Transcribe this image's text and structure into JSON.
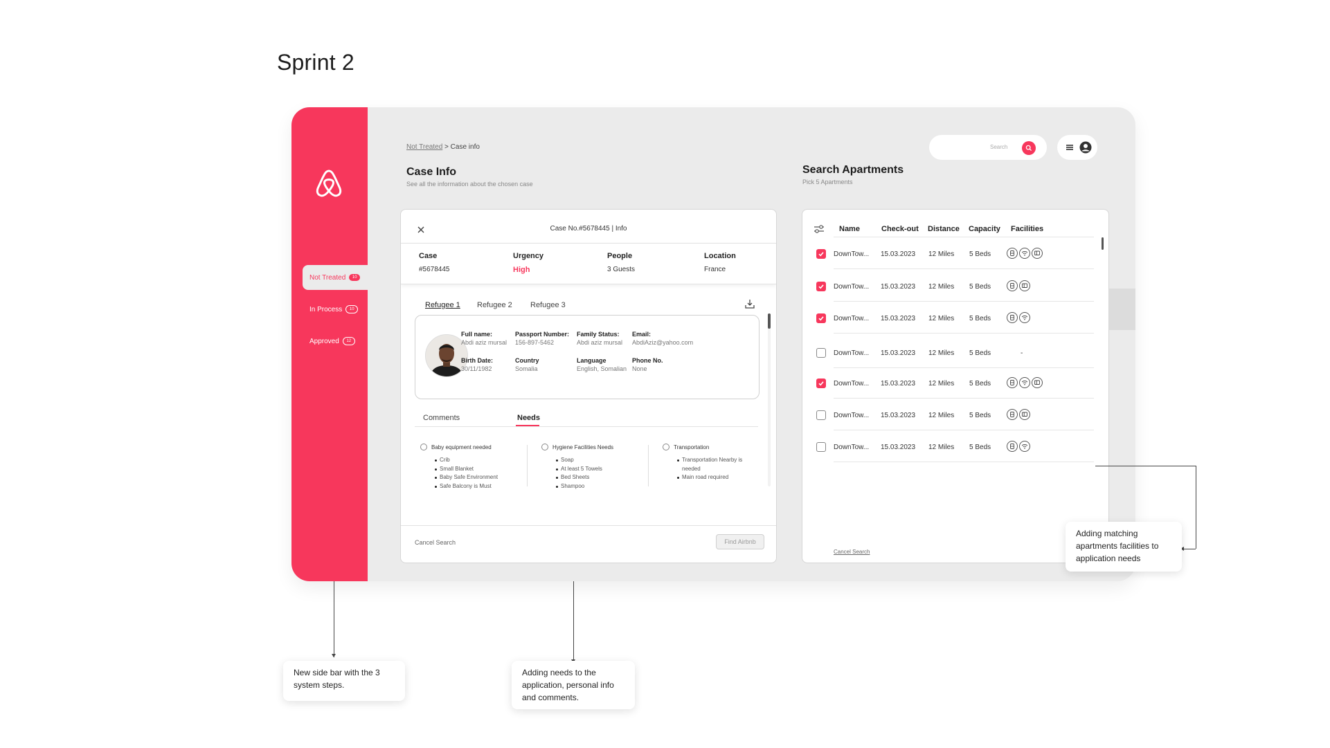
{
  "page_title": "Sprint 2",
  "sidebar": {
    "items": [
      {
        "label": "Not Treated",
        "badge": "10",
        "active": true
      },
      {
        "label": "In Process",
        "badge": "10",
        "active": false
      },
      {
        "label": "Approved",
        "badge": "12",
        "active": false
      }
    ]
  },
  "breadcrumb": {
    "parent": "Not Treated",
    "separator": " > ",
    "current": "Case info"
  },
  "search": {
    "placeholder": "Search"
  },
  "case_info": {
    "title": "Case Info",
    "subtitle": "See all the information about the chosen case",
    "header": "Case No.#5678445 | Info",
    "fields": [
      {
        "label": "Case",
        "value": "#5678445"
      },
      {
        "label": "Urgency",
        "value": "High"
      },
      {
        "label": "People",
        "value": "3 Guests"
      },
      {
        "label": "Location",
        "value": "France"
      }
    ],
    "refugee_tabs": [
      "Refugee 1",
      "Refugee 2",
      "Refugee 3"
    ],
    "person": {
      "full_name": {
        "label": "Full name:",
        "value": "Abdi aziz mursal"
      },
      "passport": {
        "label": "Passport Number:",
        "value": "156-897-5462"
      },
      "family": {
        "label": "Family Status:",
        "value": "Abdi aziz mursal"
      },
      "email": {
        "label": "Email:",
        "value": "AbdiAziz@yahoo.com"
      },
      "birth": {
        "label": "Birth Date:",
        "value": "30/11/1982"
      },
      "country": {
        "label": "Country",
        "value": "Somalia"
      },
      "language": {
        "label": "Language",
        "value": "English, Somalian"
      },
      "phone": {
        "label": "Phone No.",
        "value": "None"
      }
    },
    "sub_tabs": [
      "Comments",
      "Needs"
    ],
    "needs": [
      {
        "title": "Baby equipment needed",
        "items": [
          "Crib",
          "Small Blanket",
          "Baby Safe Environment",
          "Safe Balcony is Must"
        ]
      },
      {
        "title": "Hygiene Facilities Needs",
        "items": [
          "Soap",
          "At least 5 Towels",
          "Bed Sheets",
          "Shampoo"
        ]
      },
      {
        "title": "Transportation",
        "items": [
          "Transportation Nearby is needed",
          "Main road required"
        ]
      }
    ],
    "cancel_label": "Cancel Search",
    "find_label": "Find Airbnb"
  },
  "apartments": {
    "title": "Search Apartments",
    "subtitle": "Pick 5 Apartments",
    "columns": [
      "Name",
      "Check-out",
      "Distance",
      "Capacity",
      "Facilities"
    ],
    "rows": [
      {
        "checked": true,
        "name": "DownTow...",
        "checkout": "15.03.2023",
        "distance": "12 Miles",
        "capacity": "5 Beds",
        "facilities": [
          "bath",
          "wifi",
          "tv"
        ]
      },
      {
        "checked": true,
        "name": "DownTow...",
        "checkout": "15.03.2023",
        "distance": "12 Miles",
        "capacity": "5 Beds",
        "facilities": [
          "bath",
          "tv"
        ]
      },
      {
        "checked": true,
        "name": "DownTow...",
        "checkout": "15.03.2023",
        "distance": "12 Miles",
        "capacity": "5 Beds",
        "facilities": [
          "bath",
          "wifi"
        ]
      },
      {
        "checked": false,
        "name": "DownTow...",
        "checkout": "15.03.2023",
        "distance": "12 Miles",
        "capacity": "5 Beds",
        "facilities": [],
        "facilities_text": "-"
      },
      {
        "checked": true,
        "name": "DownTow...",
        "checkout": "15.03.2023",
        "distance": "12 Miles",
        "capacity": "5 Beds",
        "facilities": [
          "bath",
          "wifi",
          "tv"
        ]
      },
      {
        "checked": false,
        "name": "DownTow...",
        "checkout": "15.03.2023",
        "distance": "12 Miles",
        "capacity": "5 Beds",
        "facilities": [
          "bath",
          "tv"
        ]
      },
      {
        "checked": false,
        "name": "DownTow...",
        "checkout": "15.03.2023",
        "distance": "12 Miles",
        "capacity": "5 Beds",
        "facilities": [
          "bath",
          "wifi"
        ]
      }
    ],
    "cancel_label": "Cancel Search"
  },
  "annotations": {
    "sidebar": "New side bar with the 3 system steps.",
    "needs": "Adding needs to the application, personal info and comments.",
    "facilities": "Adding matching apartments facilities to application needs"
  },
  "colors": {
    "accent": "#f7375c",
    "background": "#ebebeb"
  }
}
